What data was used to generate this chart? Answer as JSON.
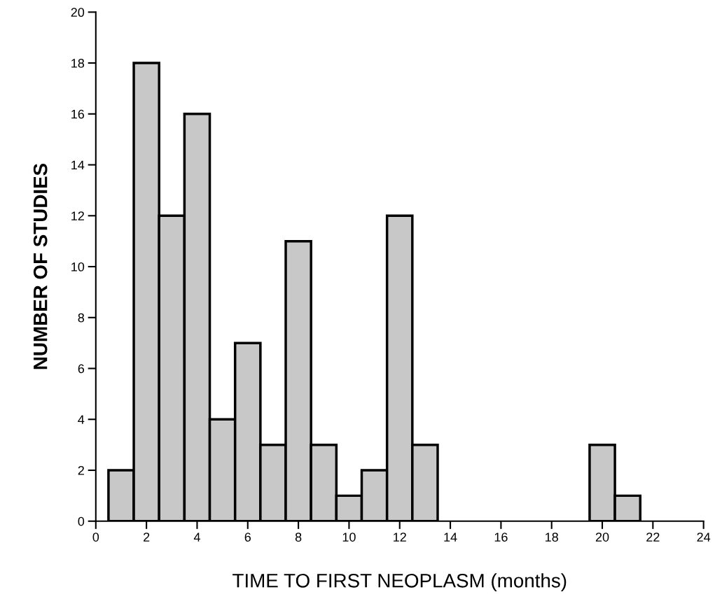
{
  "chart_data": {
    "type": "histogram",
    "xlabel": "TIME TO FIRST NEOPLASM (months)",
    "ylabel": "NUMBER OF STUDIES",
    "bins": [
      0.5,
      1.5,
      2.5,
      3.5,
      4.5,
      5.5,
      6.5,
      7.5,
      8.5,
      9.5,
      10.5,
      11.5,
      12.5,
      13.5,
      14.5,
      15.5,
      16.5,
      17.5,
      18.5,
      19.5,
      20.5,
      21.5
    ],
    "values": [
      2,
      18,
      12,
      16,
      4,
      7,
      3,
      11,
      3,
      1,
      2,
      12,
      3,
      0,
      0,
      0,
      0,
      0,
      0,
      3,
      1
    ],
    "color": "#c8c8c8",
    "xlim": [
      0,
      24
    ],
    "xticks": [
      0,
      2,
      4,
      6,
      8,
      10,
      12,
      14,
      16,
      18,
      20,
      22,
      24
    ],
    "ylim": [
      0,
      20
    ],
    "yticks": [
      0,
      2,
      4,
      6,
      8,
      10,
      12,
      14,
      16,
      18,
      20
    ],
    "grid": false
  }
}
